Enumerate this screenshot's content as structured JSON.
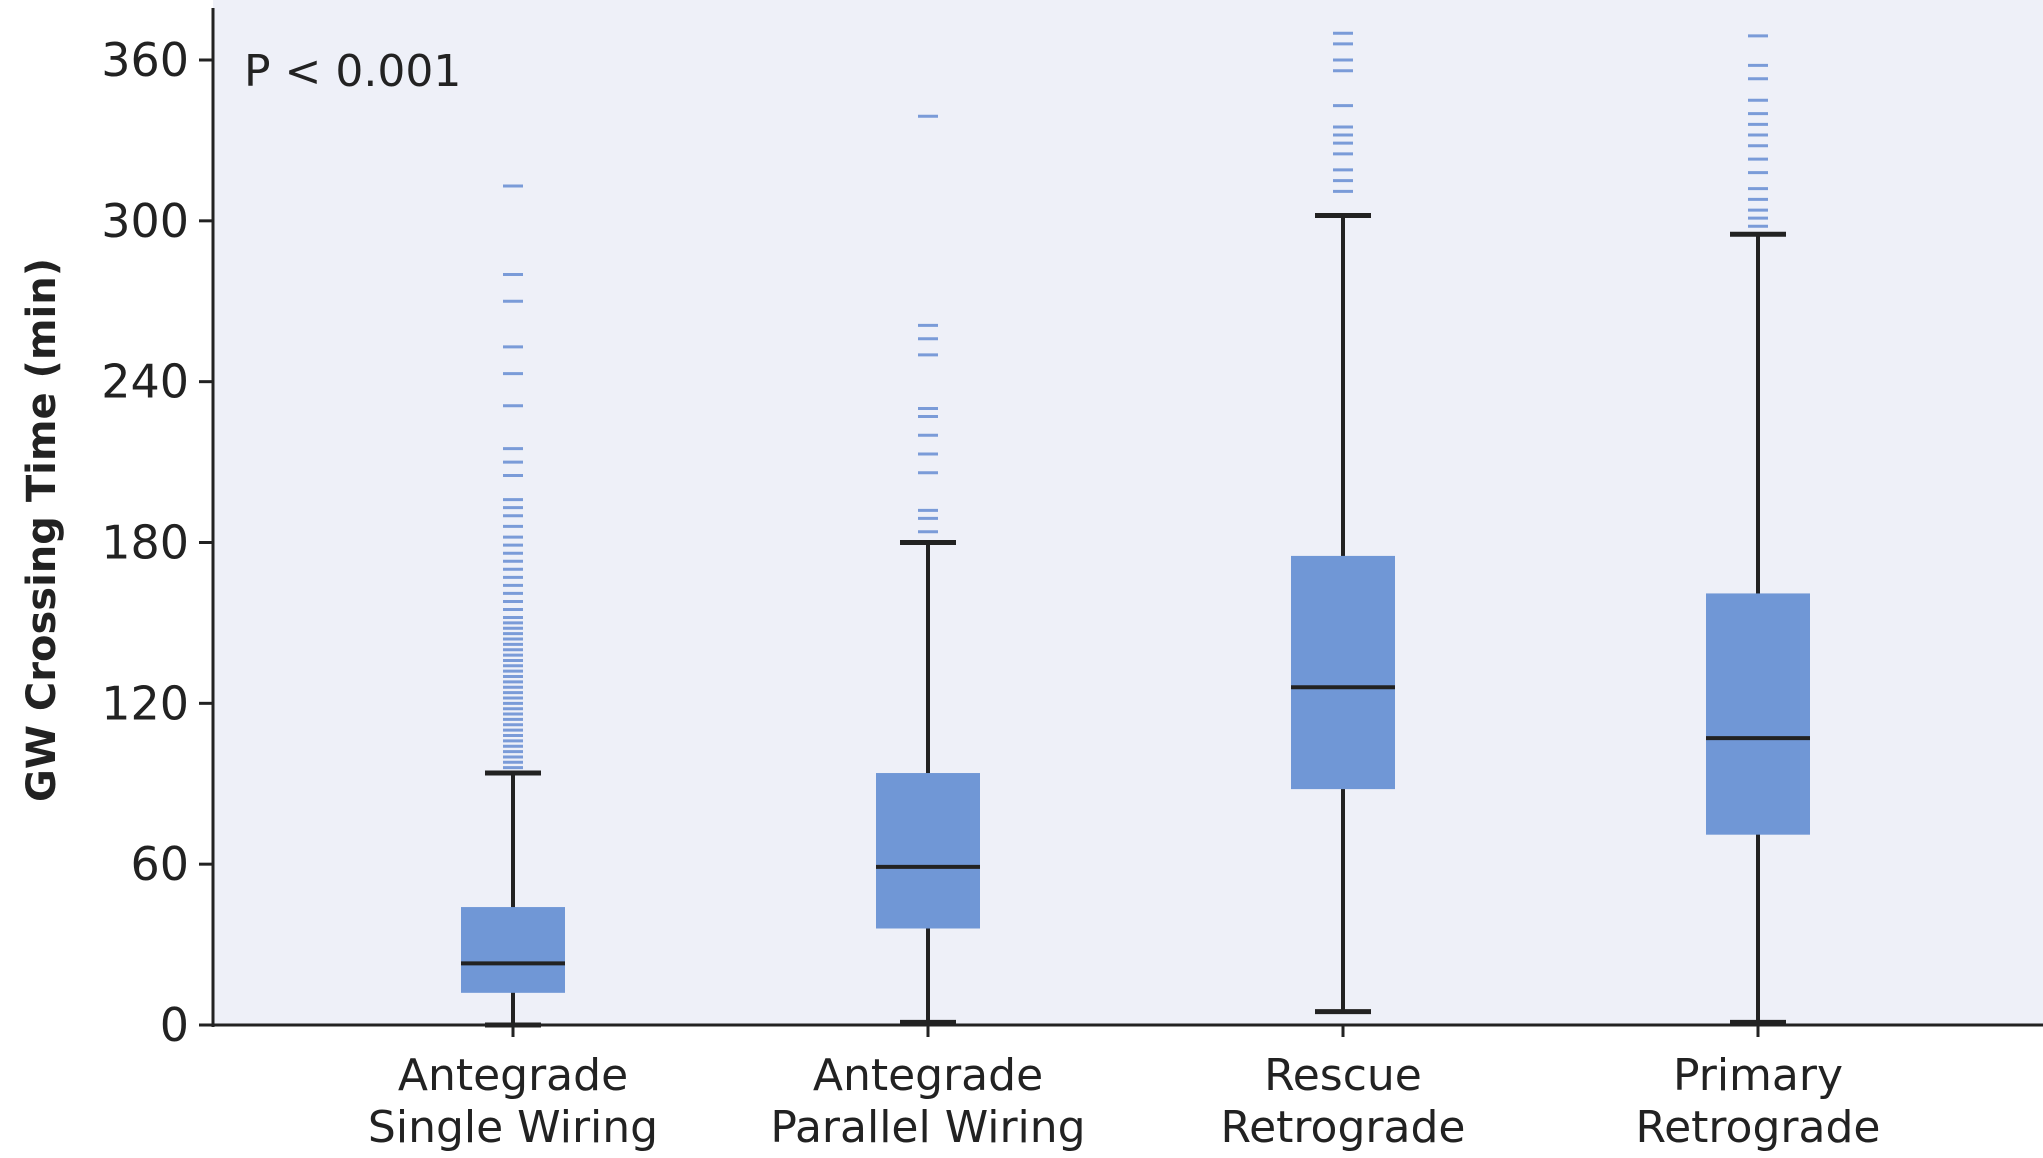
{
  "chart_data": {
    "type": "box",
    "title": "",
    "xlabel": "",
    "ylabel": "GW Crossing Time (min)",
    "annotation": "P < 0.001",
    "ylim": [
      0,
      375
    ],
    "yticks": [
      0,
      60,
      120,
      180,
      240,
      300,
      360
    ],
    "colors": {
      "background": "#eef0f8",
      "box_fill": "#7097d6",
      "outlier": "#7a9bd8",
      "line": "#222222"
    },
    "categories": [
      {
        "label_lines": [
          "Antegrade",
          "Single Wiring"
        ],
        "whisker_low": 0,
        "q1": 12,
        "median": 23,
        "q3": 44,
        "whisker_high": 94,
        "outliers": [
          96,
          98,
          100,
          102,
          104,
          106,
          108,
          110,
          112,
          114,
          116,
          118,
          120,
          122,
          124,
          126,
          128,
          130,
          132,
          134,
          136,
          138,
          140,
          142,
          144,
          146,
          148,
          150,
          152,
          155,
          158,
          161,
          164,
          167,
          170,
          173,
          176,
          179,
          182,
          186,
          190,
          193,
          196,
          205,
          210,
          215,
          231,
          243,
          253,
          270,
          280,
          313
        ]
      },
      {
        "label_lines": [
          "Antegrade",
          "Parallel Wiring"
        ],
        "whisker_low": 1,
        "q1": 36,
        "median": 59,
        "q3": 94,
        "whisker_high": 180,
        "outliers": [
          184,
          189,
          192,
          206,
          213,
          220,
          227,
          230,
          250,
          256,
          261,
          339
        ]
      },
      {
        "label_lines": [
          "Rescue",
          "Retrograde"
        ],
        "whisker_low": 5,
        "q1": 88,
        "median": 126,
        "q3": 175,
        "whisker_high": 302,
        "outliers": [
          311,
          315,
          319,
          325,
          329,
          332,
          335,
          343,
          356,
          360,
          366,
          370
        ]
      },
      {
        "label_lines": [
          "Primary",
          "Retrograde"
        ],
        "whisker_low": 1,
        "q1": 71,
        "median": 107,
        "q3": 161,
        "whisker_high": 295,
        "outliers": [
          298,
          301,
          304,
          308,
          312,
          318,
          323,
          328,
          332,
          336,
          340,
          345,
          353,
          358,
          369
        ]
      }
    ]
  }
}
